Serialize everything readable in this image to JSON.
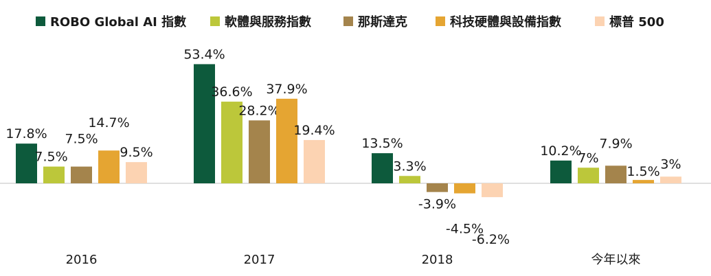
{
  "chart_data": {
    "type": "bar",
    "categories": [
      "2016",
      "2017",
      "2018",
      "今年以來"
    ],
    "series": [
      {
        "name": "ROBO Global AI 指數",
        "color": "#0d5a3c",
        "values": [
          17.8,
          53.4,
          13.5,
          10.2
        ],
        "labels": [
          "17.8%",
          "53.4%",
          "13.5%",
          "10.2%"
        ]
      },
      {
        "name": "軟體與服務指數",
        "color": "#bcc73a",
        "values": [
          7.5,
          36.6,
          3.3,
          7
        ],
        "labels": [
          "7.5%",
          "36.6%",
          "3.3%",
          "7%"
        ]
      },
      {
        "name": "那斯達克",
        "color": "#a4844c",
        "values": [
          7.5,
          28.2,
          -3.9,
          7.9
        ],
        "labels": [
          "7.5%",
          "28.2%",
          "-3.9%",
          "7.9%"
        ]
      },
      {
        "name": "科技硬體與設備指數",
        "color": "#e5a532",
        "values": [
          14.7,
          37.9,
          -4.5,
          1.5
        ],
        "labels": [
          "14.7%",
          "37.9%",
          "-4.5%",
          "1.5%"
        ]
      },
      {
        "name": "標普 500",
        "color": "#fcd3b2",
        "values": [
          9.5,
          19.4,
          -6.2,
          3
        ],
        "labels": [
          "9.5%",
          "19.4%",
          "-6.2%",
          "3%"
        ]
      }
    ],
    "legend_position": "top",
    "grid": false
  }
}
